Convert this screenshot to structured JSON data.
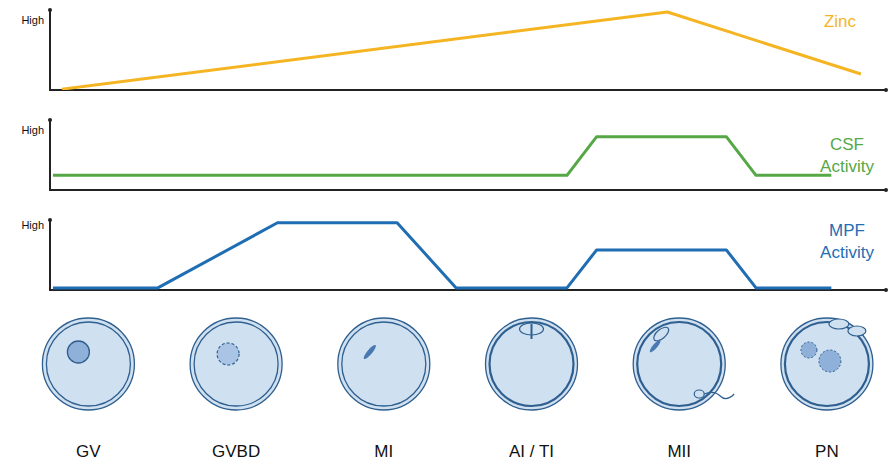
{
  "chart_data": [
    {
      "type": "line",
      "x": [
        -0.18,
        3.92,
        5.23
      ],
      "series": [
        {
          "name": "Zinc",
          "color": "#f5b523",
          "values": [
            0.01,
            0.975,
            0.2
          ]
        }
      ],
      "xlim": [
        -0.26,
        5.4
      ],
      "ylim": [
        0,
        1
      ],
      "yticks": [
        {
          "value": 0.875,
          "label": "High"
        }
      ],
      "tick_labels": "y"
    },
    {
      "type": "line",
      "x": [
        -0.24,
        3.24,
        3.44,
        4.32,
        4.52,
        5.03
      ],
      "series": [
        {
          "name": "CSF Activity",
          "color": "#56a846",
          "values": [
            0.21,
            0.21,
            0.76,
            0.76,
            0.21,
            0.21
          ]
        }
      ],
      "xlim": [
        -0.26,
        5.4
      ],
      "ylim": [
        0,
        1
      ],
      "yticks": [
        {
          "value": 0.86,
          "label": "High"
        }
      ],
      "tick_labels": "y"
    },
    {
      "type": "line",
      "x": [
        -0.24,
        0.47,
        1.28,
        2.09,
        2.49,
        3.24,
        3.44,
        4.32,
        4.52,
        5.03
      ],
      "series": [
        {
          "name": "MPF Activity",
          "color": "#1f6db3",
          "values": [
            0.03,
            0.03,
            0.96,
            0.96,
            0.03,
            0.03,
            0.57,
            0.57,
            0.03,
            0.03
          ]
        }
      ],
      "xlim": [
        -0.26,
        5.4
      ],
      "ylim": [
        0,
        1
      ],
      "yticks": [
        {
          "value": 0.93,
          "label": "High"
        }
      ],
      "xticks": [
        {
          "value": 0,
          "label": "GV"
        },
        {
          "value": 1,
          "label": "GVBD"
        },
        {
          "value": 2,
          "label": "MI"
        },
        {
          "value": 3,
          "label": "AI / TI"
        },
        {
          "value": 4,
          "label": "MII"
        },
        {
          "value": 5,
          "label": "PN"
        }
      ],
      "tick_labels": true
    }
  ]
}
